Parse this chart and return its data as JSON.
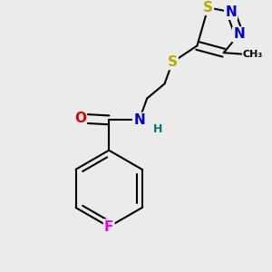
{
  "background_color": "#ebebeb",
  "atom_colors": {
    "C": "#000000",
    "N": "#0000cc",
    "O": "#dd0000",
    "S": "#bbaa00",
    "F": "#ee00ee",
    "H": "#007777"
  },
  "bond_color": "#000000",
  "bond_width": 1.5,
  "font_size_atoms": 11,
  "font_size_small": 9,
  "xlim": [
    0.0,
    1.0
  ],
  "ylim": [
    0.0,
    1.0
  ]
}
